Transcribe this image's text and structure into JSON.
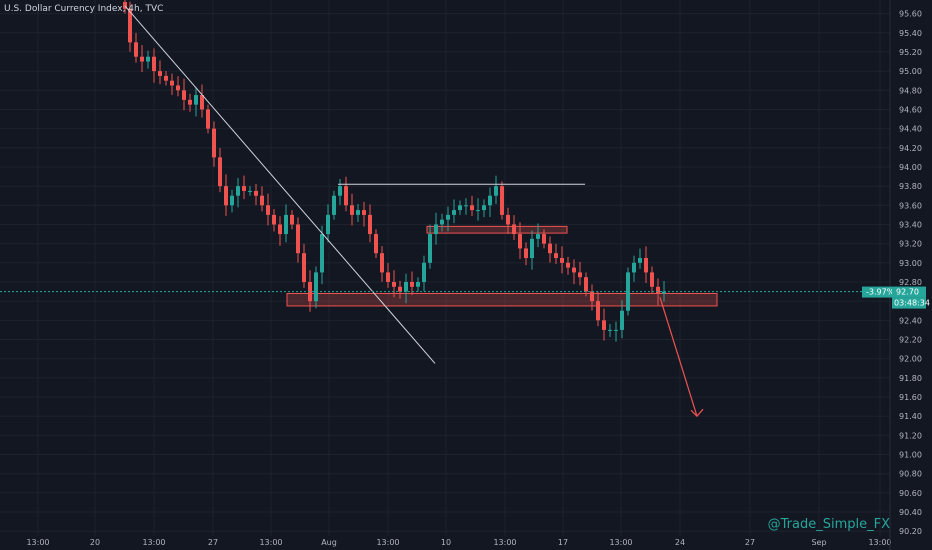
{
  "chart_data": {
    "type": "candlestick",
    "title": "U.S. Dollar Currency Index, 4h, TVC",
    "y_ticks": [
      "95.60",
      "95.40",
      "95.20",
      "95.00",
      "94.80",
      "94.60",
      "94.40",
      "94.20",
      "94.00",
      "93.80",
      "93.60",
      "93.40",
      "93.20",
      "93.00",
      "92.80",
      "92.60",
      "92.40",
      "92.20",
      "92.00",
      "91.80",
      "91.60",
      "91.40",
      "91.20",
      "91.00",
      "90.80",
      "90.60",
      "90.40",
      "90.20"
    ],
    "ylim": [
      90.15,
      95.7
    ],
    "x_ticks": [
      "13:00",
      "20",
      "13:00",
      "27",
      "13:00",
      "Aug",
      "13:00",
      "10",
      "13:00",
      "17",
      "13:00",
      "24",
      "27",
      "Sep",
      "13:00"
    ],
    "current_price": "92.70",
    "change_label": "-3.97%",
    "countdown": "03:48:34",
    "colors": {
      "up": "#26a69a",
      "down": "#ef5350",
      "bg": "#131722",
      "grid": "#1e222d"
    },
    "trend_line": {
      "from": [
        125,
        95.68
      ],
      "to": [
        435,
        91.95
      ]
    },
    "resistance_line": {
      "y": 93.82,
      "x1": 338,
      "x2": 585
    },
    "zones": [
      {
        "x1": 287,
        "x2": 717,
        "ylo": 92.55,
        "yhi": 92.68
      },
      {
        "x1": 427,
        "x2": 567,
        "ylo": 93.31,
        "yhi": 93.38
      }
    ],
    "projection": {
      "from": [
        660,
        92.64
      ],
      "to": [
        697,
        91.4
      ]
    },
    "closes": [
      [
        125,
        95.65
      ],
      [
        130,
        95.3
      ],
      [
        136,
        95.15
      ],
      [
        142,
        95.1
      ],
      [
        148,
        95.15
      ],
      [
        154,
        95.0
      ],
      [
        160,
        94.95
      ],
      [
        166,
        94.9
      ],
      [
        172,
        94.85
      ],
      [
        178,
        94.8
      ],
      [
        184,
        94.7
      ],
      [
        190,
        94.65
      ],
      [
        196,
        94.75
      ],
      [
        202,
        94.6
      ],
      [
        208,
        94.4
      ],
      [
        214,
        94.1
      ],
      [
        220,
        93.8
      ],
      [
        226,
        93.6
      ],
      [
        232,
        93.7
      ],
      [
        238,
        93.8
      ],
      [
        244,
        93.75
      ],
      [
        250,
        93.75
      ],
      [
        256,
        93.7
      ],
      [
        262,
        93.6
      ],
      [
        268,
        93.5
      ],
      [
        274,
        93.4
      ],
      [
        280,
        93.3
      ],
      [
        286,
        93.5
      ],
      [
        292,
        93.4
      ],
      [
        298,
        93.1
      ],
      [
        304,
        92.8
      ],
      [
        310,
        92.6
      ],
      [
        316,
        92.9
      ],
      [
        322,
        93.3
      ],
      [
        328,
        93.5
      ],
      [
        334,
        93.7
      ],
      [
        340,
        93.8
      ],
      [
        346,
        93.6
      ],
      [
        352,
        93.5
      ],
      [
        358,
        93.55
      ],
      [
        364,
        93.5
      ],
      [
        370,
        93.3
      ],
      [
        376,
        93.1
      ],
      [
        382,
        92.9
      ],
      [
        388,
        92.8
      ],
      [
        394,
        92.75
      ],
      [
        400,
        92.7
      ],
      [
        406,
        92.8
      ],
      [
        412,
        92.75
      ],
      [
        418,
        92.8
      ],
      [
        424,
        93.0
      ],
      [
        430,
        93.3
      ],
      [
        436,
        93.4
      ],
      [
        442,
        93.45
      ],
      [
        448,
        93.5
      ],
      [
        454,
        93.55
      ],
      [
        460,
        93.6
      ],
      [
        466,
        93.6
      ],
      [
        472,
        93.55
      ],
      [
        478,
        93.55
      ],
      [
        484,
        93.6
      ],
      [
        490,
        93.7
      ],
      [
        496,
        93.8
      ],
      [
        502,
        93.5
      ],
      [
        508,
        93.4
      ],
      [
        514,
        93.3
      ],
      [
        520,
        93.15
      ],
      [
        526,
        93.05
      ],
      [
        532,
        93.25
      ],
      [
        538,
        93.3
      ],
      [
        544,
        93.2
      ],
      [
        550,
        93.1
      ],
      [
        556,
        93.05
      ],
      [
        562,
        93.0
      ],
      [
        568,
        92.95
      ],
      [
        574,
        92.9
      ],
      [
        580,
        92.85
      ],
      [
        586,
        92.7
      ],
      [
        592,
        92.6
      ],
      [
        598,
        92.4
      ],
      [
        604,
        92.3
      ],
      [
        610,
        92.3
      ],
      [
        616,
        92.3
      ],
      [
        622,
        92.5
      ],
      [
        628,
        92.9
      ],
      [
        634,
        93.0
      ],
      [
        640,
        93.05
      ],
      [
        646,
        92.9
      ],
      [
        652,
        92.75
      ],
      [
        658,
        92.68
      ],
      [
        664,
        92.7
      ]
    ]
  },
  "watermark": "@Trade_Simple_FX"
}
